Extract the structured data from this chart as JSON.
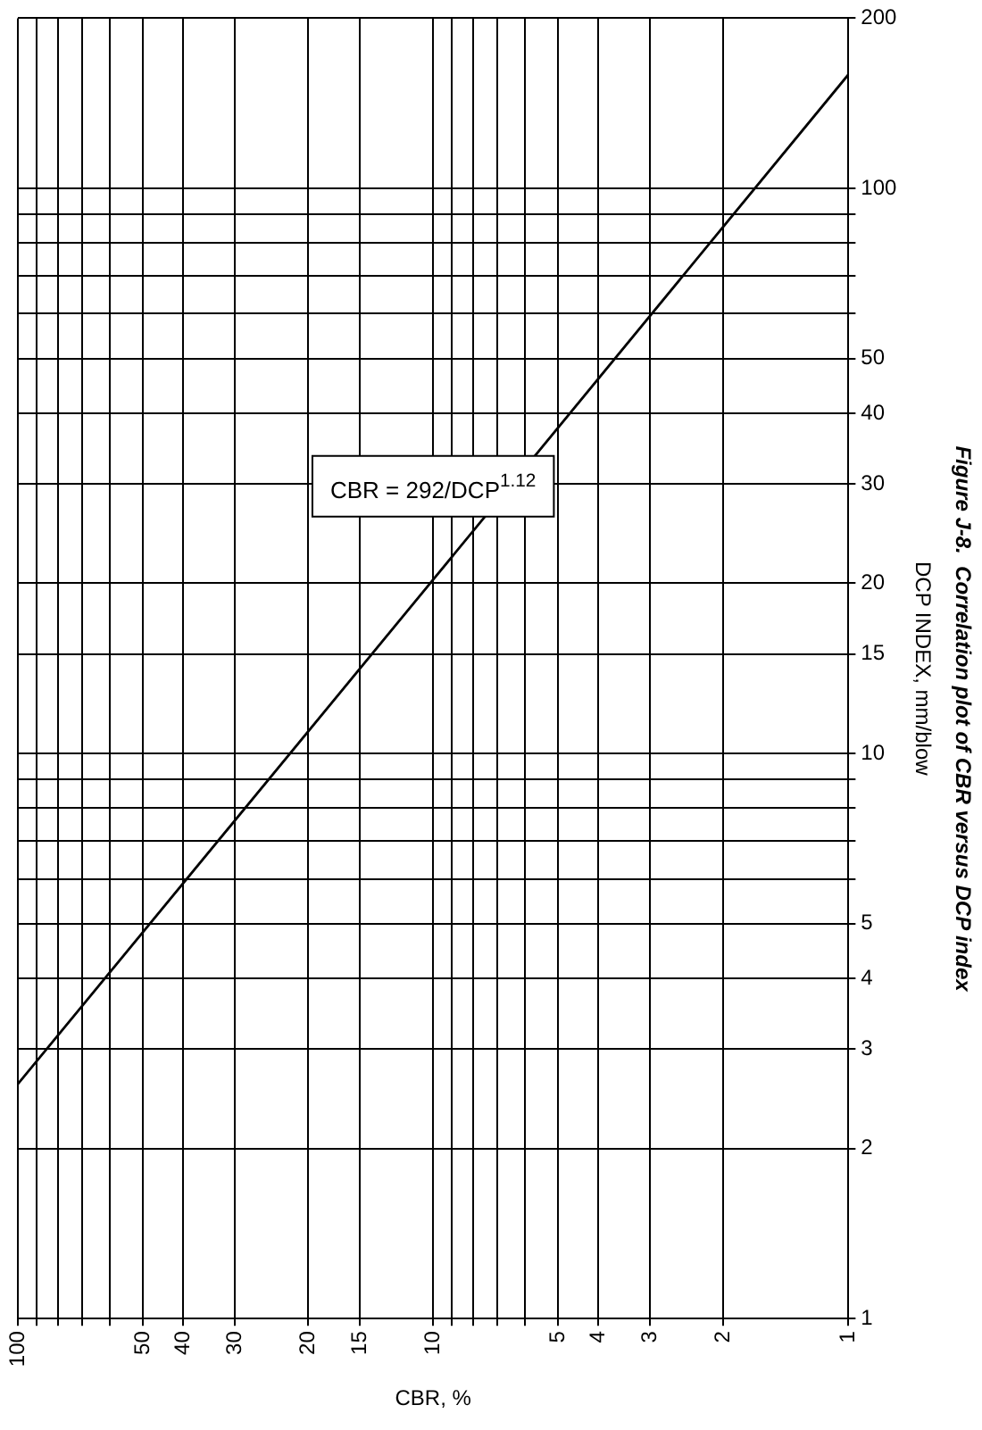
{
  "chart_data": {
    "type": "line",
    "title": "Figure J-8.  Correlation plot of CBR versus DCP index",
    "xlabel": "CBR, %",
    "ylabel": "DCP INDEX, mm/blow",
    "annotations": [
      "CBR = 292/DCP$^{1.12}$"
    ],
    "log": "xy",
    "xlim": [
      100,
      1
    ],
    "ylim": [
      1,
      200
    ],
    "xticks": [
      1,
      2,
      3,
      4,
      5,
      {
        "value": 6,
        "label": null
      },
      {
        "value": 7,
        "label": null
      },
      {
        "value": 8,
        "label": null
      },
      {
        "value": 9,
        "label": null
      },
      10,
      15,
      20,
      30,
      40,
      50,
      {
        "value": 60,
        "label": null
      },
      {
        "value": 70,
        "label": null
      },
      {
        "value": 80,
        "label": null
      },
      {
        "value": 90,
        "label": null
      },
      100
    ],
    "yticks": [
      1,
      2,
      3,
      4,
      5,
      {
        "value": 6,
        "label": null
      },
      {
        "value": 7,
        "label": null
      },
      {
        "value": 8,
        "label": null
      },
      {
        "value": 9,
        "label": null
      },
      10,
      15,
      20,
      30,
      40,
      50,
      {
        "value": 60,
        "label": null
      },
      {
        "value": 70,
        "label": null
      },
      {
        "value": 80,
        "label": null
      },
      {
        "value": 90,
        "label": null
      },
      100,
      200
    ],
    "grid": true,
    "legend": false,
    "marker": "none",
    "line_style": "solid",
    "series": [
      {
        "color": "#000000",
        "x": [
          100,
          10,
          1
        ],
        "values": [
          2.6,
          20.3,
          159
        ]
      }
    ]
  }
}
